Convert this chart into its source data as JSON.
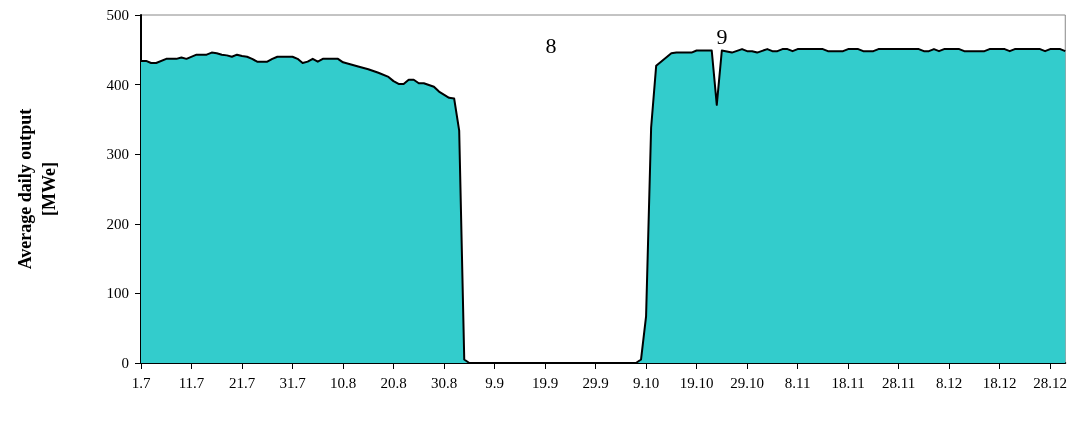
{
  "chart_data": {
    "type": "area",
    "ylabel": "Average daily output [MWe]",
    "x": [
      "--07-01",
      "--07-02",
      "--07-03",
      "--07-04",
      "--07-06",
      "--07-08",
      "--07-09",
      "--07-10",
      "--07-12",
      "--07-14",
      "--07-15",
      "--07-16",
      "--07-17",
      "--07-18",
      "--07-19",
      "--07-20",
      "--07-21",
      "--07-22",
      "--07-23",
      "--07-24",
      "--07-26",
      "--07-27",
      "--07-28",
      "--07-31",
      "--08-01",
      "--08-02",
      "--08-03",
      "--08-04",
      "--08-05",
      "--08-06",
      "--08-09",
      "--08-10",
      "--08-13",
      "--08-15",
      "--08-17",
      "--08-19",
      "--08-20",
      "--08-21",
      "--08-22",
      "--08-23",
      "--08-24",
      "--08-25",
      "--08-26",
      "--08-28",
      "--08-29",
      "--08-31",
      "--09-01",
      "--09-02",
      "--09-03",
      "--09-04",
      "--10-07",
      "--10-08",
      "--10-09",
      "--10-10",
      "--10-11",
      "--10-14",
      "--10-15",
      "--10-18",
      "--10-19",
      "--10-22",
      "--10-23",
      "--10-24",
      "--10-26",
      "--10-28",
      "--10-29",
      "--10-30",
      "--10-31",
      "--11-02",
      "--11-03",
      "--11-04",
      "--11-05",
      "--11-06",
      "--11-07",
      "--11-08",
      "--11-13",
      "--11-14",
      "--11-17",
      "--11-18",
      "--11-20",
      "--11-21",
      "--11-23",
      "--11-24",
      "--12-02",
      "--12-03",
      "--12-04",
      "--12-05",
      "--12-06",
      "--12-07",
      "--12-10",
      "--12-11",
      "--12-15",
      "--12-16",
      "--12-19",
      "--12-20",
      "--12-21",
      "--12-26",
      "--12-27",
      "--12-28",
      "--12-30",
      "--12-31"
    ],
    "series": [
      {
        "color": "#33cccc",
        "values": [
          434,
          434,
          431,
          431,
          437,
          437,
          439,
          437,
          443,
          443,
          446,
          445,
          443,
          442,
          440,
          443,
          441,
          440,
          437,
          433,
          433,
          437,
          440,
          440,
          437,
          431,
          433,
          437,
          433,
          437,
          437,
          432,
          426,
          422,
          417,
          411,
          405,
          401,
          401,
          407,
          407,
          402,
          402,
          397,
          390,
          381,
          380,
          334,
          5,
          0,
          0,
          5,
          67,
          338,
          427,
          445,
          446,
          446,
          449,
          449,
          371,
          449,
          446,
          451,
          448,
          448,
          446,
          451,
          448,
          448,
          451,
          451,
          448,
          451,
          451,
          448,
          448,
          451,
          451,
          448,
          448,
          451,
          451,
          448,
          448,
          451,
          448,
          451,
          451,
          448,
          448,
          451,
          451,
          448,
          451,
          451,
          448,
          451,
          451,
          448
        ]
      }
    ],
    "xlim": [
      "--07-01",
      "--12-31"
    ],
    "xticks": [
      {
        "value": "--07-01",
        "label": "1.7"
      },
      {
        "value": "--07-11",
        "label": "11.7"
      },
      {
        "value": "--07-21",
        "label": "21.7"
      },
      {
        "value": "--07-31",
        "label": "31.7"
      },
      {
        "value": "--08-10",
        "label": "10.8"
      },
      {
        "value": "--08-20",
        "label": "20.8"
      },
      {
        "value": "--08-30",
        "label": "30.8"
      },
      {
        "value": "--09-09",
        "label": "9.9"
      },
      {
        "value": "--09-19",
        "label": "19.9"
      },
      {
        "value": "--09-29",
        "label": "29.9"
      },
      {
        "value": "--10-09",
        "label": "9.10"
      },
      {
        "value": "--10-19",
        "label": "19.10"
      },
      {
        "value": "--10-29",
        "label": "29.10"
      },
      {
        "value": "--11-08",
        "label": "8.11"
      },
      {
        "value": "--11-18",
        "label": "18.11"
      },
      {
        "value": "--11-28",
        "label": "28.11"
      },
      {
        "value": "--12-08",
        "label": "8.12"
      },
      {
        "value": "--12-18",
        "label": "18.12"
      },
      {
        "value": "--12-28",
        "label": "28.12"
      }
    ],
    "ylim": [
      0,
      500
    ],
    "yticks": [
      0,
      100,
      200,
      300,
      400,
      500
    ],
    "annotations": [
      "8",
      "9"
    ],
    "grid": false,
    "marker": "none",
    "line_style": "solid"
  }
}
